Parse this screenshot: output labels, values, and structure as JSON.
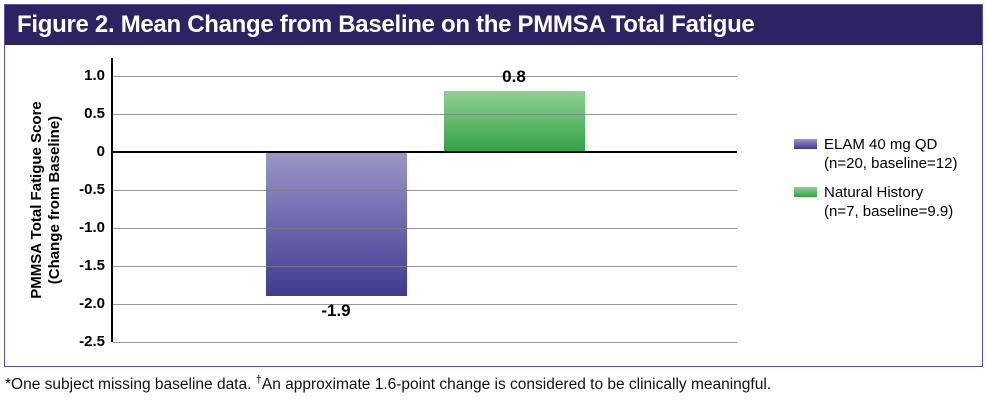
{
  "header": {
    "title": "Figure 2. Mean Change from Baseline on the PMMSA Total Fatigue"
  },
  "chart_data": {
    "type": "bar",
    "title": "Figure 2. Mean Change from Baseline on the PMMSA Total Fatigue",
    "categories": [
      "ELAM 40 mg QD",
      "Natural History"
    ],
    "values": [
      -1.9,
      0.8
    ],
    "bar_labels": [
      "-1.9",
      "0.8"
    ],
    "ylabel_line1": "PMMSA Total Fatigue Score",
    "ylabel_line2": "(Change from Baseline)",
    "xlabel": "",
    "ylim": [
      -2.5,
      1.0
    ],
    "yticks": [
      1.0,
      0.5,
      0,
      -0.5,
      -1.0,
      -1.5,
      -2.0,
      -2.5
    ],
    "ytick_labels": [
      "1.0",
      "0.5",
      "0",
      "-0.5",
      "-1.0",
      "-1.5",
      "-2.0",
      "-2.5"
    ],
    "grid": true,
    "legend_position": "right",
    "series": [
      {
        "name": "ELAM 40 mg QD",
        "subtitle": "(n=20, baseline=12)",
        "value": -1.9,
        "label": "-1.9",
        "color_top": "#9a97c8",
        "color_bottom": "#403a92"
      },
      {
        "name": "Natural History",
        "subtitle": "(n=7, baseline=9.9)",
        "value": 0.8,
        "label": "0.8",
        "color_top": "#90d190",
        "color_bottom": "#2fa344"
      }
    ]
  },
  "footnote": {
    "part1": "*One subject missing baseline data. ",
    "dagger": "†",
    "part2": "An approximate 1.6-point change is considered to be clinically meaningful."
  },
  "colors": {
    "header_bg": "#2d2363",
    "panel_border": "#5b51a0",
    "gridline": "#7d7d7d",
    "axis": "#000000",
    "elam_top": "#9a97c8",
    "elam_bottom": "#403a92",
    "natural_top": "#90d190",
    "natural_bottom": "#2fa344"
  }
}
